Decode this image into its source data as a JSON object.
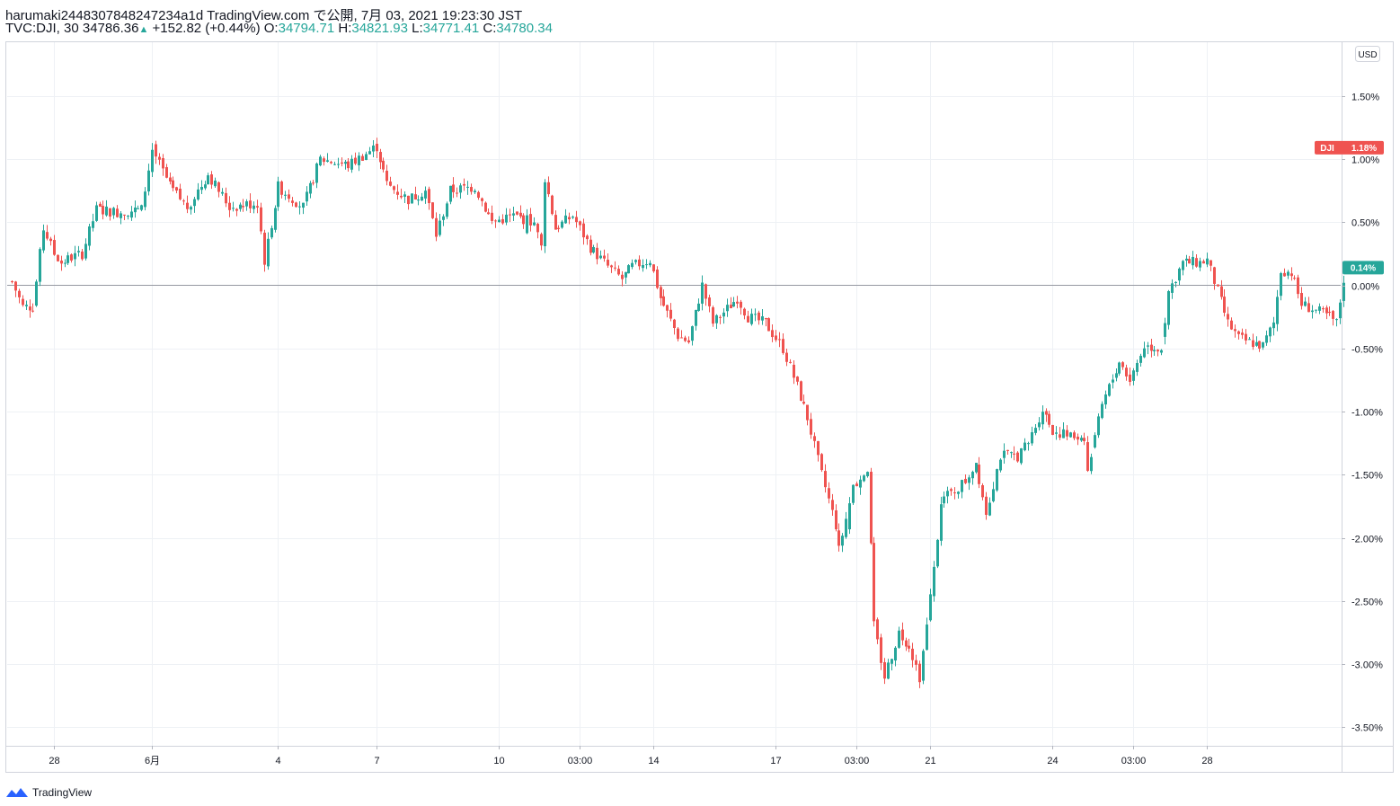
{
  "header": {
    "publish_line": "harumaki2448307848247234a1d TradingView.com で公開, 7月 03, 2021 19:23:30 JST",
    "symbol": "TVC:DJI, 30",
    "last": "34786.36",
    "up_arrow": "▲",
    "change": "+152.82 (+0.44%)",
    "o_label": "O:",
    "o_value": "34794.71",
    "h_label": "H:",
    "h_value": "34821.93",
    "l_label": "L:",
    "l_value": "34771.41",
    "c_label": "C:",
    "c_value": "34780.34"
  },
  "currency_label": "USD",
  "badges": {
    "dji": {
      "name": "DJI",
      "value": "1.18%",
      "level": 1.09,
      "color": "#ef5350"
    },
    "pct": {
      "value": "0.14%",
      "level": 0.14,
      "color": "#26a69a"
    }
  },
  "footer": {
    "brand": "TradingView",
    "icon": "tradingview-logo-icon"
  },
  "colors": {
    "up": "#26a69a",
    "down": "#ef5350",
    "grid": "#eef1f5",
    "axis": "#787b86"
  },
  "chart_data": {
    "type": "candlestick",
    "y_unit": "%",
    "ylim": [
      -3.6,
      1.9
    ],
    "y_ticks": [
      {
        "value": 1.5,
        "label": "1.50%"
      },
      {
        "value": 1.0,
        "label": "1.00%"
      },
      {
        "value": 0.5,
        "label": "0.50%"
      },
      {
        "value": 0.0,
        "label": "0.00%"
      },
      {
        "value": -0.5,
        "label": "-0.50%"
      },
      {
        "value": -1.0,
        "label": "-1.00%"
      },
      {
        "value": -1.5,
        "label": "-1.50%"
      },
      {
        "value": -2.0,
        "label": "-2.00%"
      },
      {
        "value": -2.5,
        "label": "-2.50%"
      },
      {
        "value": -3.0,
        "label": "-3.00%"
      },
      {
        "value": -3.5,
        "label": "-3.50%"
      }
    ],
    "x_ticks": [
      {
        "bar": 12,
        "label": "28"
      },
      {
        "bar": 40,
        "label": "6月"
      },
      {
        "bar": 76,
        "label": "4"
      },
      {
        "bar": 104,
        "label": "7"
      },
      {
        "bar": 139,
        "label": "10"
      },
      {
        "bar": 162,
        "label": "03:00"
      },
      {
        "bar": 183,
        "label": "14"
      },
      {
        "bar": 218,
        "label": "17"
      },
      {
        "bar": 241,
        "label": "03:00"
      },
      {
        "bar": 262,
        "label": "21"
      },
      {
        "bar": 297,
        "label": "24"
      },
      {
        "bar": 320,
        "label": "03:00"
      },
      {
        "bar": 341,
        "label": "28"
      }
    ],
    "anchors": [
      [
        0,
        0.03
      ],
      [
        3,
        -0.17
      ],
      [
        6,
        -0.17
      ],
      [
        9,
        0.45
      ],
      [
        12,
        0.25
      ],
      [
        14,
        0.18
      ],
      [
        17,
        0.22
      ],
      [
        20,
        0.25
      ],
      [
        24,
        0.6
      ],
      [
        30,
        0.58
      ],
      [
        37,
        0.6
      ],
      [
        40,
        1.08
      ],
      [
        45,
        0.78
      ],
      [
        50,
        0.62
      ],
      [
        56,
        0.88
      ],
      [
        62,
        0.62
      ],
      [
        70,
        0.65
      ],
      [
        72,
        0.2
      ],
      [
        76,
        0.78
      ],
      [
        83,
        0.62
      ],
      [
        88,
        1.0
      ],
      [
        96,
        0.95
      ],
      [
        104,
        1.1
      ],
      [
        107,
        0.8
      ],
      [
        113,
        0.68
      ],
      [
        118,
        0.75
      ],
      [
        121,
        0.4
      ],
      [
        125,
        0.75
      ],
      [
        132,
        0.78
      ],
      [
        137,
        0.5
      ],
      [
        143,
        0.55
      ],
      [
        149,
        0.5
      ],
      [
        151,
        0.3
      ],
      [
        152,
        0.85
      ],
      [
        155,
        0.45
      ],
      [
        160,
        0.55
      ],
      [
        165,
        0.3
      ],
      [
        170,
        0.15
      ],
      [
        174,
        0.05
      ],
      [
        177,
        0.15
      ],
      [
        182,
        0.2
      ],
      [
        185,
        -0.1
      ],
      [
        190,
        -0.4
      ],
      [
        193,
        -0.45
      ],
      [
        197,
        0.0
      ],
      [
        200,
        -0.3
      ],
      [
        207,
        -0.1
      ],
      [
        210,
        -0.25
      ],
      [
        215,
        -0.3
      ],
      [
        220,
        -0.5
      ],
      [
        224,
        -0.8
      ],
      [
        227,
        -1.05
      ],
      [
        231,
        -1.5
      ],
      [
        235,
        -1.9
      ],
      [
        236,
        -2.1
      ],
      [
        240,
        -1.6
      ],
      [
        244,
        -1.45
      ],
      [
        246,
        -2.7
      ],
      [
        249,
        -3.1
      ],
      [
        253,
        -2.75
      ],
      [
        256,
        -2.85
      ],
      [
        259,
        -3.1
      ],
      [
        261,
        -2.7
      ],
      [
        263,
        -2.25
      ],
      [
        265,
        -1.7
      ],
      [
        268,
        -1.65
      ],
      [
        272,
        -1.55
      ],
      [
        275,
        -1.4
      ],
      [
        278,
        -1.8
      ],
      [
        282,
        -1.35
      ],
      [
        287,
        -1.35
      ],
      [
        290,
        -1.25
      ],
      [
        294,
        -0.98
      ],
      [
        297,
        -1.15
      ],
      [
        302,
        -1.2
      ],
      [
        306,
        -1.2
      ],
      [
        307,
        -1.48
      ],
      [
        311,
        -0.95
      ],
      [
        316,
        -0.6
      ],
      [
        319,
        -0.75
      ],
      [
        323,
        -0.48
      ],
      [
        328,
        -0.5
      ],
      [
        330,
        -0.05
      ],
      [
        334,
        0.18
      ],
      [
        339,
        0.18
      ],
      [
        341,
        0.2
      ],
      [
        344,
        -0.05
      ],
      [
        347,
        -0.3
      ],
      [
        350,
        -0.42
      ],
      [
        353,
        -0.45
      ],
      [
        357,
        -0.48
      ],
      [
        360,
        -0.3
      ],
      [
        362,
        0.12
      ],
      [
        365,
        0.1
      ],
      [
        368,
        -0.15
      ],
      [
        372,
        -0.2
      ],
      [
        376,
        -0.25
      ],
      [
        378,
        -0.3
      ],
      [
        380,
        0.05
      ]
    ],
    "bar_count": 381
  }
}
